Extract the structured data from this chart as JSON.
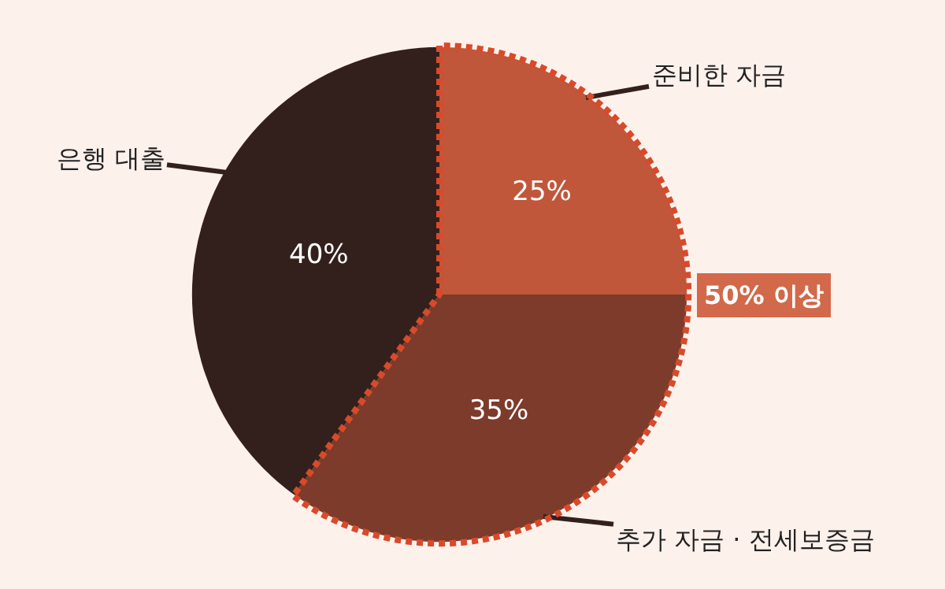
{
  "chart_data": {
    "type": "pie",
    "categories": [
      "준비한 자금",
      "추가 자금 · 전세보증금",
      "은행 대출"
    ],
    "values": [
      25,
      35,
      40
    ],
    "colors": [
      "#c0573a",
      "#7c3b2b",
      "#33201c"
    ],
    "value_labels": [
      "25%",
      "35%",
      "40%"
    ],
    "annotations": [
      "50% 이상"
    ],
    "legend": false
  }
}
